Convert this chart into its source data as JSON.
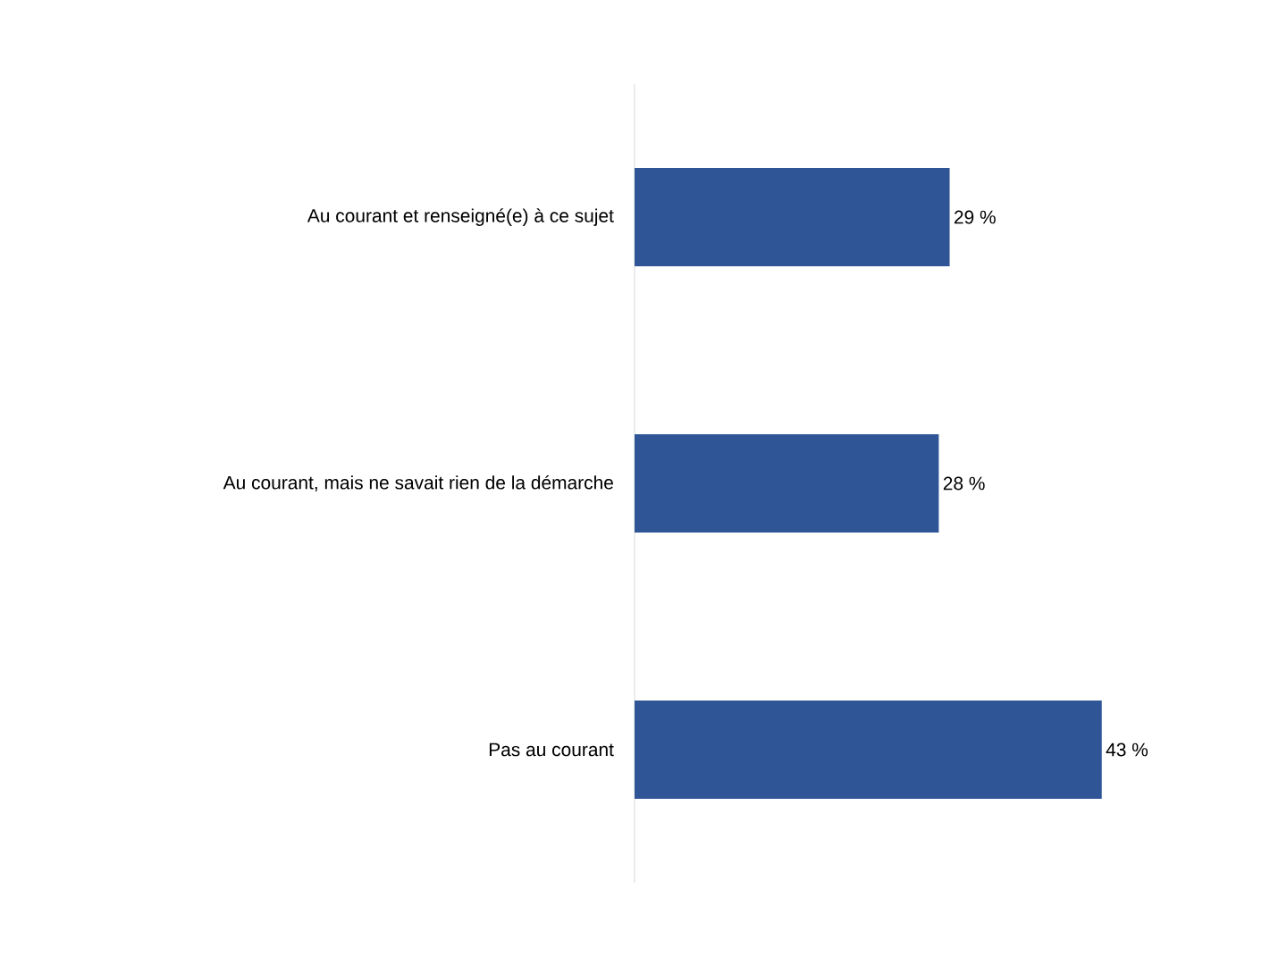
{
  "chart_data": {
    "type": "bar",
    "orientation": "horizontal",
    "categories": [
      "Au courant et renseigné(e) à ce sujet",
      "Au courant, mais ne savait rien de la démarche",
      "Pas au courant"
    ],
    "values": [
      29,
      28,
      43
    ],
    "value_labels": [
      "29 %",
      "28 %",
      "43 %"
    ],
    "color": "#2f5597",
    "tick_labels": "y"
  }
}
